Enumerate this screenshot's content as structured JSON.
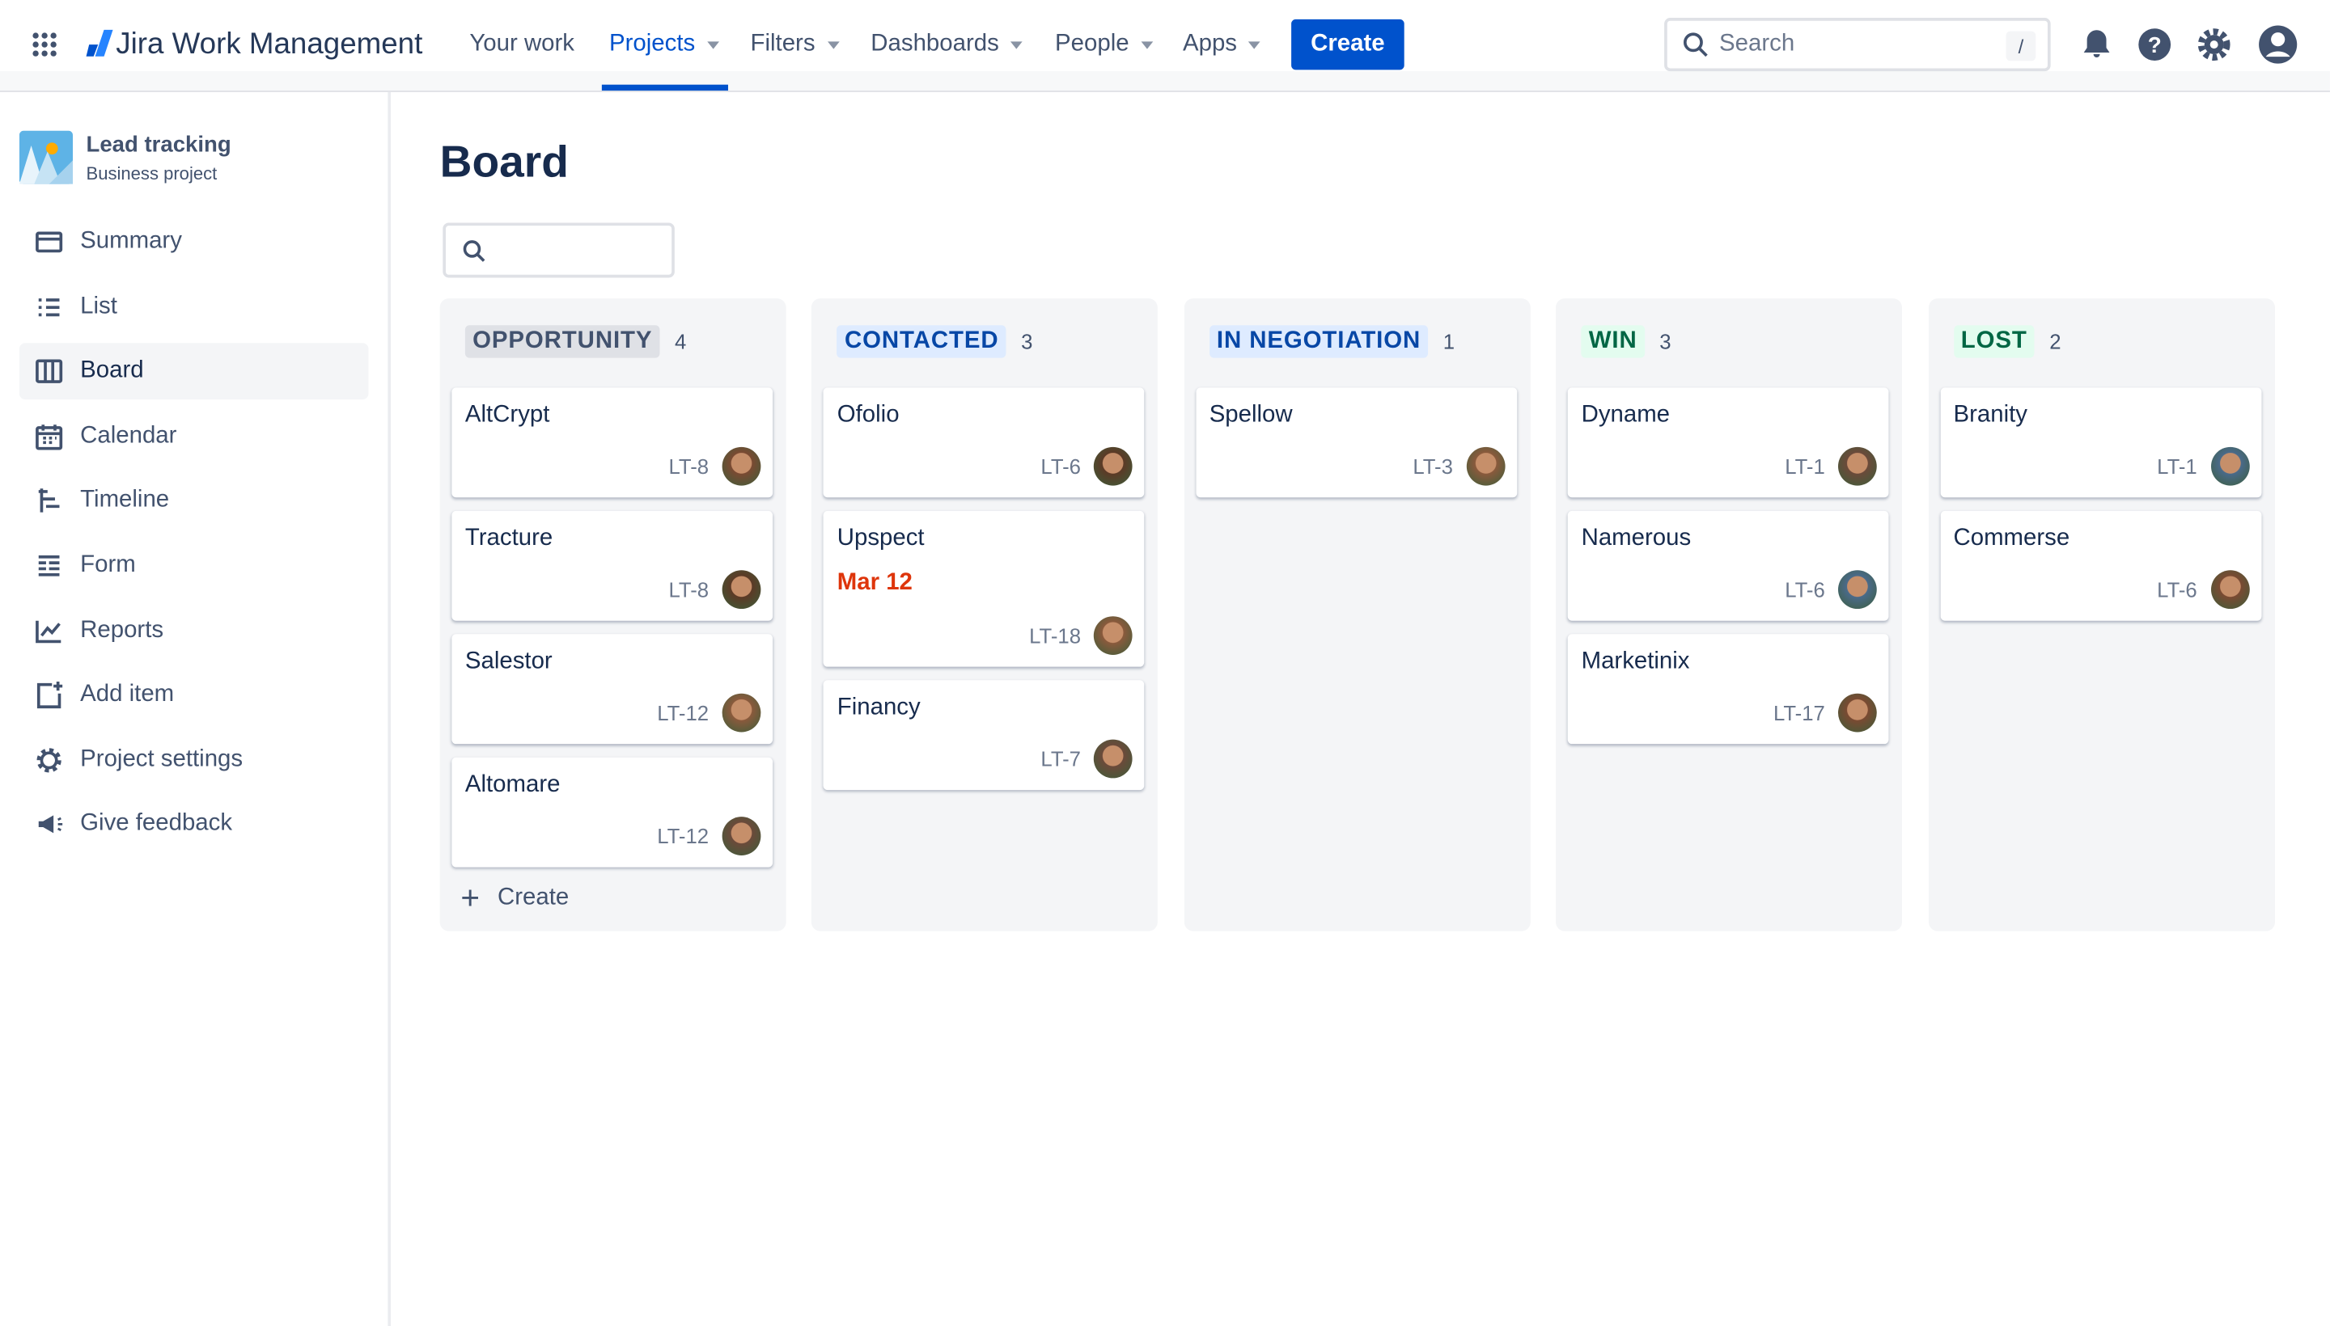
{
  "topnav": {
    "product": "Jira Work Management",
    "items": [
      {
        "label": "Your work",
        "dropdown": false
      },
      {
        "label": "Projects",
        "dropdown": true,
        "active": true
      },
      {
        "label": "Filters",
        "dropdown": true
      },
      {
        "label": "Dashboards",
        "dropdown": true
      },
      {
        "label": "People",
        "dropdown": true
      },
      {
        "label": "Apps",
        "dropdown": true
      }
    ],
    "create_label": "Create",
    "search_placeholder": "Search",
    "search_shortcut": "/",
    "icons": [
      "app-switcher-icon",
      "bell-icon",
      "help-icon",
      "gear-icon",
      "profile-icon"
    ],
    "accent": "#0052cc"
  },
  "sidebar": {
    "project_name": "Lead tracking",
    "project_type": "Business project",
    "items": [
      {
        "label": "Summary",
        "icon": "summary-icon"
      },
      {
        "label": "List",
        "icon": "list-icon"
      },
      {
        "label": "Board",
        "icon": "board-icon",
        "active": true
      },
      {
        "label": "Calendar",
        "icon": "calendar-icon"
      },
      {
        "label": "Timeline",
        "icon": "timeline-icon"
      },
      {
        "label": "Form",
        "icon": "form-icon"
      },
      {
        "label": "Reports",
        "icon": "reports-icon"
      },
      {
        "label": "Add item",
        "icon": "add-item-icon"
      },
      {
        "label": "Project settings",
        "icon": "gear-icon"
      },
      {
        "label": "Give feedback",
        "icon": "megaphone-icon"
      }
    ]
  },
  "board": {
    "title": "Board",
    "create_label": "Create",
    "columns": [
      {
        "name": "OPPORTUNITY",
        "count": "4",
        "bg": "#dfe1e6",
        "fg": "#42526e",
        "cards": [
          {
            "title": "AltCrypt",
            "key": "LT-8"
          },
          {
            "title": "Tracture",
            "key": "LT-8"
          },
          {
            "title": "Salestor",
            "key": "LT-12"
          },
          {
            "title": "Altomare",
            "key": "LT-12"
          }
        ]
      },
      {
        "name": "CONTACTED",
        "count": "3",
        "bg": "#deebff",
        "fg": "#0747a6",
        "cards": [
          {
            "title": "Ofolio",
            "key": "LT-6"
          },
          {
            "title": "Upspect",
            "key": "LT-18",
            "date": "Mar 12"
          },
          {
            "title": "Financy",
            "key": "LT-7"
          }
        ]
      },
      {
        "name": "IN NEGOTIATION",
        "count": "1",
        "bg": "#deebff",
        "fg": "#0747a6",
        "cards": [
          {
            "title": "Spellow",
            "key": "LT-3"
          }
        ]
      },
      {
        "name": "WIN",
        "count": "3",
        "bg": "#e3fcef",
        "fg": "#006644",
        "cards": [
          {
            "title": "Dyname",
            "key": "LT-1"
          },
          {
            "title": "Namerous",
            "key": "LT-6"
          },
          {
            "title": "Marketinix",
            "key": "LT-17"
          }
        ]
      },
      {
        "name": "LOST",
        "count": "2",
        "bg": "#e3fcef",
        "fg": "#006644",
        "cards": [
          {
            "title": "Branity",
            "key": "LT-1"
          },
          {
            "title": "Commerse",
            "key": "LT-6"
          }
        ]
      }
    ]
  }
}
